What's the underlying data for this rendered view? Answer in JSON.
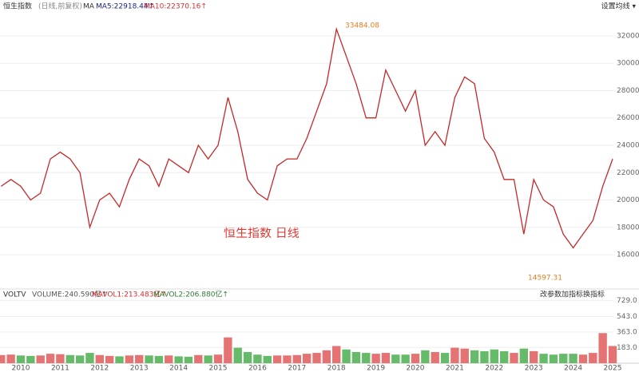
{
  "chart_data": [
    {
      "type": "line",
      "title": "恒生指数",
      "subtitle": "(日线,前复权)",
      "indicator": "MA",
      "ma_labels": [
        "MA5:22918.44↑",
        "MA10:22370.16↑"
      ],
      "ma_colors": [
        "#1a237e",
        "#d32f2f"
      ],
      "settings_label": "设置均线 ▾",
      "annotations": [
        "33484.08",
        "14597.31",
        "恒生指数  日线"
      ],
      "categories": [
        null,
        null,
        "2010",
        null,
        null,
        null,
        "2011",
        null,
        null,
        null,
        "2012",
        null,
        null,
        null,
        "2013",
        null,
        null,
        null,
        "2014",
        null,
        null,
        null,
        "2015",
        null,
        null,
        null,
        "2016",
        null,
        null,
        null,
        "2017",
        null,
        null,
        null,
        "2018",
        null,
        null,
        null,
        "2019",
        null,
        null,
        null,
        "2020",
        null,
        null,
        null,
        "2021",
        null,
        null,
        null,
        "2022",
        null,
        null,
        null,
        "2023",
        null,
        null,
        null,
        "2024",
        null,
        null,
        null,
        "2025"
      ],
      "series": [
        {
          "name": "恒生指数",
          "color": "#c62828",
          "values": [
            21000,
            21500,
            21000,
            20000,
            20500,
            23000,
            23500,
            23000,
            22000,
            18000,
            20000,
            20500,
            19500,
            21500,
            23000,
            22500,
            21000,
            23000,
            22500,
            22000,
            24000,
            23000,
            24000,
            27500,
            25000,
            21500,
            20500,
            20000,
            22500,
            23000,
            23000,
            24500,
            26500,
            28500,
            32500,
            30500,
            28500,
            26000,
            26000,
            29500,
            28000,
            26500,
            28000,
            24000,
            25000,
            24000,
            27500,
            29000,
            28500,
            24500,
            23500,
            21500,
            21500,
            17500,
            21500,
            20000,
            19500,
            17500,
            16500,
            17500,
            18500,
            21000,
            23000
          ]
        }
      ],
      "ylim": [
        13900,
        33750
      ],
      "yticks": [
        {
          "value": 16000,
          "label": "16000.0"
        },
        {
          "value": 18000,
          "label": "18000.0"
        },
        {
          "value": 20000,
          "label": "20000.0"
        },
        {
          "value": 22000,
          "label": "22000.0"
        },
        {
          "value": 24000,
          "label": "24000.0"
        },
        {
          "value": 26000,
          "label": "26000.0"
        },
        {
          "value": 28000,
          "label": "28000.0"
        },
        {
          "value": 30000,
          "label": "30000.0"
        },
        {
          "value": 32000,
          "label": "32000.0"
        }
      ],
      "grid": true
    },
    {
      "type": "bar",
      "title": "VOLTV",
      "indicator_labels": [
        "VOLUME:240.590亿↑",
        "MAVOL1:213.483亿↑",
        "MAVOL2:206.880亿↑"
      ],
      "indicator_colors": [
        "#555555",
        "#d32f2f",
        "#2e7d32"
      ],
      "buttons": [
        "改参数",
        "加指标",
        "换指标"
      ],
      "up_color": "#e57373",
      "down_color": "#66bb6a",
      "values": [
        95,
        100,
        90,
        85,
        90,
        110,
        105,
        95,
        90,
        120,
        95,
        85,
        80,
        90,
        95,
        90,
        85,
        90,
        80,
        75,
        95,
        90,
        100,
        300,
        180,
        130,
        100,
        85,
        90,
        90,
        95,
        110,
        120,
        150,
        200,
        160,
        130,
        120,
        110,
        120,
        100,
        100,
        110,
        150,
        130,
        120,
        180,
        170,
        150,
        140,
        160,
        140,
        120,
        170,
        140,
        110,
        100,
        110,
        110,
        100,
        120,
        350,
        200
      ],
      "ylim": [
        0,
        770
      ],
      "yticks": [
        {
          "value": 183,
          "label": "183.0"
        },
        {
          "value": 363,
          "label": "363.0"
        },
        {
          "value": 543,
          "label": "543.0"
        },
        {
          "value": 729,
          "label": "729.0"
        }
      ],
      "grid": true
    }
  ]
}
